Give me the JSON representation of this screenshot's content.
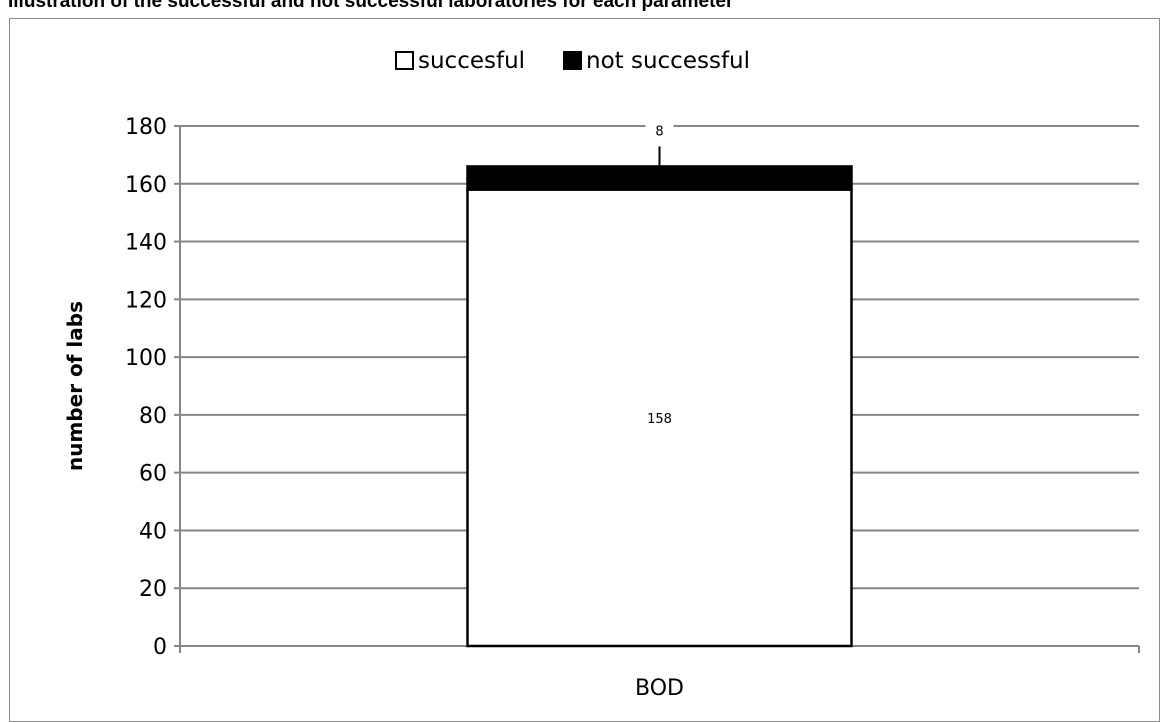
{
  "title": "Illustration of the successful and not successful laboratories for each parameter",
  "chart_data": {
    "type": "bar",
    "stacked": true,
    "categories": [
      "BOD"
    ],
    "series": [
      {
        "name": "succesful",
        "values": [
          158
        ],
        "color": "#ffffff",
        "data_labels": [
          "158"
        ]
      },
      {
        "name": "not successful",
        "values": [
          8
        ],
        "color": "#000000",
        "data_labels": [
          "8"
        ]
      }
    ],
    "xlabel": "",
    "ylabel": "number of labs",
    "ylim": [
      0,
      180
    ],
    "yticks": [
      0,
      20,
      40,
      60,
      80,
      100,
      120,
      140,
      160,
      180
    ],
    "grid": true,
    "legend_position": "top"
  }
}
